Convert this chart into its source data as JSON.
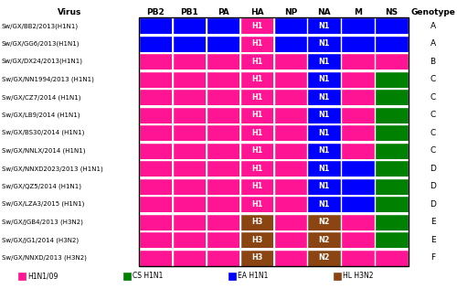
{
  "viruses": [
    "Sw/GX/BB2/2013(H1N1)",
    "Sw/GX/GG6/2013(H1N1)",
    "Sw/GX/DX24/2013(H1N1)",
    "Sw/GX/NN1994/2013 (H1N1)",
    "Sw/GX/CZ7/2014 (H1N1)",
    "Sw/GX/LB9/2014 (H1N1)",
    "Sw/GX/BS30/2014 (H1N1)",
    "Sw/GX/NNLX/2014 (H1N1)",
    "Sw/GX/NNXD2023/2013 (H1N1)",
    "Sw/GX/QZ5/2014 (H1N1)",
    "Sw/GX/LZA3/2015 (H1N1)",
    "Sw/GX/JGB4/2013 (H3N2)",
    "Sw/GX/JG1/2014 (H3N2)",
    "Sw/GX/NNXD/2013 (H3N2)"
  ],
  "genotypes": [
    "A",
    "A",
    "B",
    "C",
    "C",
    "C",
    "C",
    "C",
    "D",
    "D",
    "D",
    "E",
    "E",
    "F"
  ],
  "segments": [
    "PB2",
    "PB1",
    "PA",
    "HA",
    "NP",
    "NA",
    "M",
    "NS"
  ],
  "colors": {
    "H1N1/09": "#FF1493",
    "CS H1N1": "#008000",
    "EA H1N1": "#0000FF",
    "HL H3N2": "#8B4513"
  },
  "grid": [
    [
      "EA",
      "EA",
      "EA",
      "H1",
      "EA",
      "N1",
      "EA",
      "EA"
    ],
    [
      "EA",
      "EA",
      "EA",
      "H1",
      "EA",
      "N1",
      "EA",
      "EA"
    ],
    [
      "H1",
      "H1",
      "H1",
      "H1",
      "H1",
      "N1",
      "H1",
      "H1"
    ],
    [
      "H1",
      "H1",
      "H1",
      "H1",
      "H1",
      "N1",
      "H1",
      "CS"
    ],
    [
      "H1",
      "H1",
      "H1",
      "H1",
      "H1",
      "N1",
      "H1",
      "CS"
    ],
    [
      "H1",
      "H1",
      "H1",
      "H1",
      "H1",
      "N1",
      "H1",
      "CS"
    ],
    [
      "H1",
      "H1",
      "H1",
      "H1",
      "H1",
      "N1",
      "H1",
      "CS"
    ],
    [
      "H1",
      "H1",
      "H1",
      "H1",
      "H1",
      "N1",
      "H1",
      "CS"
    ],
    [
      "H1",
      "H1",
      "H1",
      "H1",
      "H1",
      "N1",
      "EA",
      "CS"
    ],
    [
      "H1",
      "H1",
      "H1",
      "H1",
      "H1",
      "N1",
      "EA",
      "CS"
    ],
    [
      "H1",
      "H1",
      "H1",
      "H1",
      "H1",
      "N1",
      "EA",
      "CS"
    ],
    [
      "H1",
      "H1",
      "H1",
      "H3",
      "H1",
      "N2",
      "H1",
      "CS"
    ],
    [
      "H1",
      "H1",
      "H1",
      "H3",
      "H1",
      "N2",
      "H1",
      "CS"
    ],
    [
      "H1",
      "H1",
      "H1",
      "H3",
      "H1",
      "N2",
      "H1",
      "H1"
    ]
  ],
  "legend_items": [
    "H1N1/09",
    "CS H1N1",
    "EA H1N1",
    "HL H3N2"
  ],
  "legend_colors": [
    "#FF1493",
    "#008000",
    "#0000FF",
    "#8B4513"
  ],
  "title": "Virus",
  "col_header": "Genotype",
  "color_map": {
    "H1": "#FF1493",
    "H3": "#8B4513",
    "N1": "#0000FF",
    "N2": "#8B4513",
    "EA": "#0000FF",
    "CS": "#008000"
  }
}
